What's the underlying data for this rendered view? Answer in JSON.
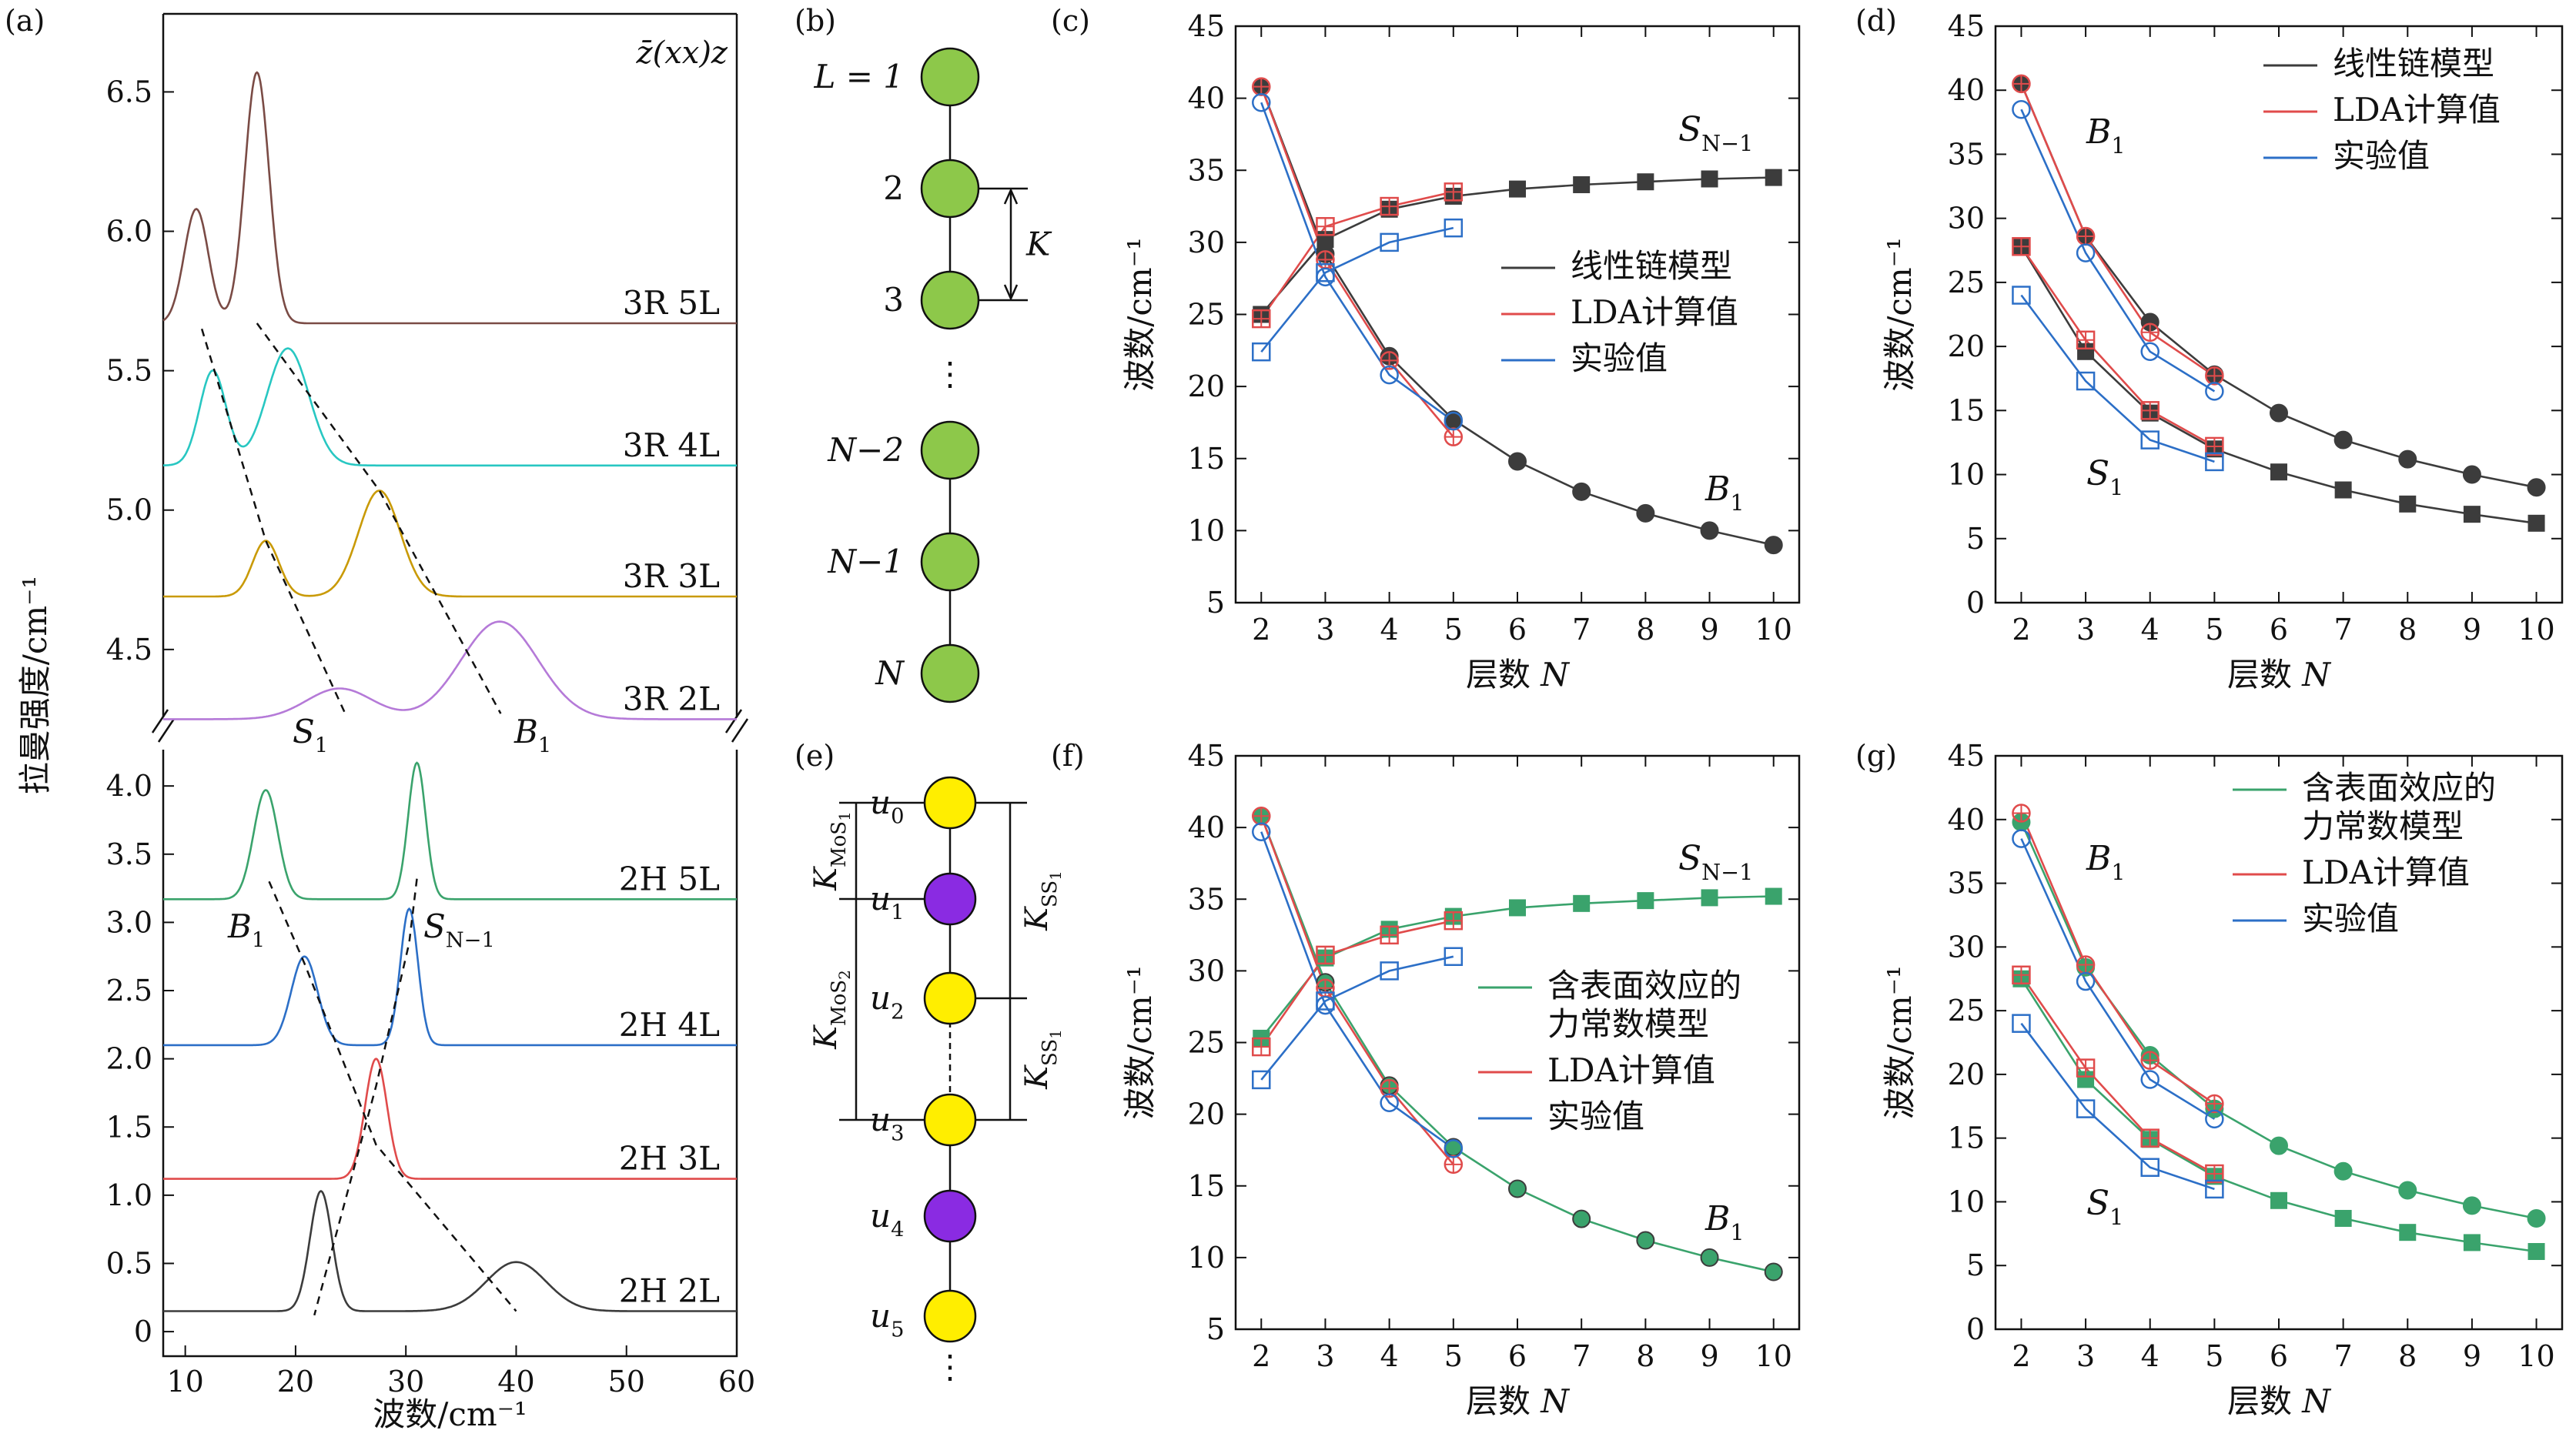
{
  "panel_labels": [
    "(a)",
    "(b)",
    "(c)",
    "(d)",
    "(e)",
    "(f)",
    "(g)"
  ],
  "chart_data": [
    {
      "id": "a",
      "type": "line",
      "xlabel": "波数/cm⁻¹",
      "ylabel": "拉曼强度/cm⁻¹",
      "annotation": "z̄(xx)z",
      "xlim": [
        8,
        60
      ],
      "xticks": [
        10,
        20,
        30,
        40,
        50,
        60
      ],
      "upper": {
        "ylim": [
          4.24,
          6.78
        ],
        "yticks": [
          4.5,
          5.0,
          5.5,
          6.0,
          6.5
        ]
      },
      "lower": {
        "ylim": [
          -0.18,
          4.3
        ],
        "yticks": [
          0,
          0.5,
          1.0,
          1.5,
          2.0,
          2.5,
          3.0,
          3.5,
          4.0
        ]
      },
      "series": [
        {
          "name": "3R 5L",
          "axis": "upper",
          "color": "#7a4b45",
          "baseline": 5.67,
          "peaks": [
            [
              11,
              0.41,
              1.1
            ],
            [
              16.5,
              0.9,
              1.1
            ]
          ]
        },
        {
          "name": "3R 4L",
          "axis": "upper",
          "color": "#28c7c2",
          "baseline": 5.16,
          "peaks": [
            [
              12.5,
              0.34,
              1.2
            ],
            [
              19.3,
              0.42,
              1.9
            ]
          ]
        },
        {
          "name": "3R 3L",
          "axis": "upper",
          "color": "#c99a06",
          "baseline": 4.69,
          "peaks": [
            [
              17.3,
              0.2,
              1.2
            ],
            [
              27.6,
              0.38,
              1.9
            ]
          ]
        },
        {
          "name": "3R 2L",
          "axis": "upper",
          "color": "#b57ad8",
          "baseline": 4.25,
          "peaks": [
            [
              24,
              0.11,
              3.0
            ],
            [
              38.5,
              0.35,
              3.5
            ]
          ]
        },
        {
          "name": "2H 5L",
          "axis": "lower",
          "color": "#3aa36c",
          "baseline": 3.17,
          "peaks": [
            [
              17.3,
              0.8,
              1.1
            ],
            [
              31,
              1.0,
              0.8
            ]
          ]
        },
        {
          "name": "2H 4L",
          "axis": "lower",
          "color": "#2c6fc7",
          "baseline": 2.1,
          "peaks": [
            [
              20.8,
              0.65,
              1.2
            ],
            [
              30.3,
              1.0,
              0.8
            ]
          ]
        },
        {
          "name": "2H 3L",
          "axis": "lower",
          "color": "#e04b4b",
          "baseline": 1.12,
          "peaks": [
            [
              27.3,
              0.88,
              1.0
            ]
          ]
        },
        {
          "name": "2H 2L",
          "axis": "lower",
          "color": "#3c3c3c",
          "baseline": 0.15,
          "peaks": [
            [
              22.3,
              0.88,
              1.0
            ],
            [
              40,
              0.36,
              2.7
            ]
          ]
        }
      ],
      "annotations": [
        {
          "text": "S",
          "sub": "1"
        },
        {
          "text": "B",
          "sub": "1"
        },
        {
          "text": "B",
          "sub": "1"
        },
        {
          "text": "S",
          "sub": "N−1"
        }
      ],
      "guides": {
        "upper_S1": [
          [
            11.5,
            5.65
          ],
          [
            17.3,
            4.89
          ],
          [
            24.5,
            4.27
          ]
        ],
        "upper_B1": [
          [
            16.5,
            5.67
          ],
          [
            27.6,
            5.07
          ],
          [
            38.6,
            4.27
          ]
        ],
        "lower_B1": [
          [
            17.6,
            3.3
          ],
          [
            20.8,
            2.7
          ],
          [
            27.3,
            1.37
          ],
          [
            40,
            0.15
          ]
        ],
        "lower_SN1": [
          [
            31,
            3.32
          ],
          [
            30.3,
            2.85
          ],
          [
            27.3,
            1.8
          ],
          [
            21.7,
            0.12
          ]
        ]
      }
    },
    {
      "id": "c",
      "type": "line",
      "xlabel": "层数 N",
      "ylabel": "波数/cm⁻¹",
      "xlim": [
        1.6,
        10.4
      ],
      "ylim": [
        5,
        45
      ],
      "xticks": [
        2,
        3,
        4,
        5,
        6,
        7,
        8,
        9,
        10
      ],
      "yticks": [
        5,
        10,
        15,
        20,
        25,
        30,
        35,
        40,
        45
      ],
      "legend": [
        {
          "label": "线性链模型",
          "color": "#3c3c3c"
        },
        {
          "label": "LDA计算值",
          "color": "#e04b4b"
        },
        {
          "label": "实验值",
          "color": "#2c6fc7"
        }
      ],
      "series": [
        {
          "name": "线性链模型 B1",
          "color": "#3c3c3c",
          "marker": "circle-filled",
          "x": [
            2,
            3,
            4,
            5,
            6,
            7,
            8,
            9,
            10
          ],
          "y": [
            40.8,
            29.2,
            22.1,
            17.7,
            14.8,
            12.7,
            11.2,
            10.0,
            9.0
          ]
        },
        {
          "name": "线性链模型 SN-1",
          "color": "#3c3c3c",
          "marker": "square-filled",
          "x": [
            2,
            3,
            4,
            5,
            6,
            7,
            8,
            9,
            10
          ],
          "y": [
            25.0,
            30.2,
            32.3,
            33.2,
            33.7,
            34.0,
            34.2,
            34.4,
            34.5
          ]
        },
        {
          "name": "LDA计算值 B1",
          "color": "#e04b4b",
          "marker": "circle-plus",
          "x": [
            2,
            3,
            4,
            5
          ],
          "y": [
            40.8,
            28.8,
            21.8,
            16.5
          ]
        },
        {
          "name": "LDA计算值 SN-1",
          "color": "#e04b4b",
          "marker": "square-plus",
          "x": [
            2,
            3,
            4,
            5
          ],
          "y": [
            24.7,
            31.1,
            32.5,
            33.5
          ]
        },
        {
          "name": "实验值 B1",
          "color": "#2c6fc7",
          "marker": "circle-open",
          "x": [
            2,
            3,
            4,
            5
          ],
          "y": [
            39.7,
            27.6,
            20.8,
            17.6
          ]
        },
        {
          "name": "实验值 SN-1",
          "color": "#2c6fc7",
          "marker": "square-open",
          "x": [
            2,
            3,
            4,
            5
          ],
          "y": [
            22.4,
            27.9,
            30.0,
            31.0
          ]
        }
      ],
      "annotations": [
        {
          "text": "S",
          "sub": "N−1"
        },
        {
          "text": "B",
          "sub": "1"
        }
      ]
    },
    {
      "id": "d",
      "type": "line",
      "xlabel": "层数 N",
      "ylabel": "波数/cm⁻¹",
      "xlim": [
        1.6,
        10.4
      ],
      "ylim": [
        0,
        45
      ],
      "xticks": [
        2,
        3,
        4,
        5,
        6,
        7,
        8,
        9,
        10
      ],
      "yticks": [
        0,
        5,
        10,
        15,
        20,
        25,
        30,
        35,
        40,
        45
      ],
      "legend": [
        {
          "label": "线性链模型",
          "color": "#3c3c3c"
        },
        {
          "label": "LDA计算值",
          "color": "#e04b4b"
        },
        {
          "label": "实验值",
          "color": "#2c6fc7"
        }
      ],
      "series": [
        {
          "name": "线性链模型 B1",
          "color": "#3c3c3c",
          "marker": "circle-filled",
          "x": [
            2,
            3,
            4,
            5,
            6,
            7,
            8,
            9,
            10
          ],
          "y": [
            40.5,
            28.6,
            21.9,
            17.8,
            14.8,
            12.7,
            11.2,
            10.0,
            9.0
          ]
        },
        {
          "name": "线性链模型 S1",
          "color": "#3c3c3c",
          "marker": "square-filled",
          "x": [
            2,
            3,
            4,
            5,
            6,
            7,
            8,
            9,
            10
          ],
          "y": [
            27.8,
            19.6,
            14.8,
            12.0,
            10.2,
            8.8,
            7.7,
            6.9,
            6.2
          ]
        },
        {
          "name": "LDA计算值 B1",
          "color": "#e04b4b",
          "marker": "circle-plus",
          "x": [
            2,
            3,
            4,
            5
          ],
          "y": [
            40.5,
            28.6,
            21.1,
            17.7
          ]
        },
        {
          "name": "LDA计算值 S1",
          "color": "#e04b4b",
          "marker": "square-plus",
          "x": [
            2,
            3,
            4,
            5
          ],
          "y": [
            27.8,
            20.5,
            15.0,
            12.2
          ]
        },
        {
          "name": "实验值 B1",
          "color": "#2c6fc7",
          "marker": "circle-open",
          "x": [
            2,
            3,
            4,
            5
          ],
          "y": [
            38.5,
            27.3,
            19.6,
            16.5
          ]
        },
        {
          "name": "实验值 S1",
          "color": "#2c6fc7",
          "marker": "square-open",
          "x": [
            2,
            3,
            4,
            5
          ],
          "y": [
            24.0,
            17.3,
            12.7,
            11.0
          ]
        }
      ],
      "annotations": [
        {
          "text": "B",
          "sub": "1"
        },
        {
          "text": "S",
          "sub": "1"
        }
      ]
    },
    {
      "id": "f",
      "type": "line",
      "xlabel": "层数 N",
      "ylabel": "波数/cm⁻¹",
      "xlim": [
        1.6,
        10.4
      ],
      "ylim": [
        5,
        45
      ],
      "xticks": [
        2,
        3,
        4,
        5,
        6,
        7,
        8,
        9,
        10
      ],
      "yticks": [
        5,
        10,
        15,
        20,
        25,
        30,
        35,
        40,
        45
      ],
      "legend": [
        {
          "label": "含表面效应的",
          "label2": "力常数模型",
          "color": "#3aa36c"
        },
        {
          "label": "LDA计算值",
          "color": "#e04b4b"
        },
        {
          "label": "实验值",
          "color": "#2c6fc7"
        }
      ],
      "series": [
        {
          "name": "含表面效应的力常数模型 B1",
          "color": "#3aa36c",
          "marker": "circle-filled-green",
          "edge": "#3c3c3c",
          "x": [
            2,
            3,
            4,
            5,
            6,
            7,
            8,
            9,
            10
          ],
          "y": [
            40.8,
            29.2,
            22.0,
            17.7,
            14.8,
            12.7,
            11.2,
            10.0,
            9.0
          ]
        },
        {
          "name": "含表面效应的力常数模型 SN-1",
          "color": "#3aa36c",
          "marker": "square-filled",
          "x": [
            2,
            3,
            4,
            5,
            6,
            7,
            8,
            9,
            10
          ],
          "y": [
            25.3,
            30.9,
            32.9,
            33.8,
            34.4,
            34.7,
            34.9,
            35.1,
            35.2
          ]
        },
        {
          "name": "LDA计算值 B1",
          "color": "#e04b4b",
          "marker": "circle-plus",
          "x": [
            2,
            3,
            4,
            5
          ],
          "y": [
            40.8,
            28.8,
            21.8,
            16.5
          ]
        },
        {
          "name": "LDA计算值 SN-1",
          "color": "#e04b4b",
          "marker": "square-plus",
          "x": [
            2,
            3,
            4,
            5
          ],
          "y": [
            24.7,
            31.1,
            32.5,
            33.5
          ]
        },
        {
          "name": "实验值 B1",
          "color": "#2c6fc7",
          "marker": "circle-open",
          "x": [
            2,
            3,
            4,
            5
          ],
          "y": [
            39.7,
            27.6,
            20.8,
            17.6
          ]
        },
        {
          "name": "实验值 SN-1",
          "color": "#2c6fc7",
          "marker": "square-open",
          "x": [
            2,
            3,
            4,
            5
          ],
          "y": [
            22.4,
            27.9,
            30.0,
            31.0
          ]
        }
      ],
      "annotations": [
        {
          "text": "S",
          "sub": "N−1"
        },
        {
          "text": "B",
          "sub": "1"
        }
      ]
    },
    {
      "id": "g",
      "type": "line",
      "xlabel": "层数 N",
      "ylabel": "波数/cm⁻¹",
      "xlim": [
        1.6,
        10.4
      ],
      "ylim": [
        0,
        45
      ],
      "xticks": [
        2,
        3,
        4,
        5,
        6,
        7,
        8,
        9,
        10
      ],
      "yticks": [
        0,
        5,
        10,
        15,
        20,
        25,
        30,
        35,
        40,
        45
      ],
      "legend": [
        {
          "label": "含表面效应的",
          "label2": "力常数模型",
          "color": "#3aa36c"
        },
        {
          "label": "LDA计算值",
          "color": "#e04b4b"
        },
        {
          "label": "实验值",
          "color": "#2c6fc7"
        }
      ],
      "series": [
        {
          "name": "含表面效应的力常数模型 B1",
          "color": "#3aa36c",
          "marker": "circle-filled",
          "x": [
            2,
            3,
            4,
            5,
            6,
            7,
            8,
            9,
            10
          ],
          "y": [
            39.8,
            28.4,
            21.5,
            17.3,
            14.4,
            12.4,
            10.9,
            9.7,
            8.7
          ]
        },
        {
          "name": "含表面效应的力常数模型 S1",
          "color": "#3aa36c",
          "marker": "square-filled",
          "x": [
            2,
            3,
            4,
            5,
            6,
            7,
            8,
            9,
            10
          ],
          "y": [
            27.5,
            19.6,
            14.9,
            12.0,
            10.1,
            8.7,
            7.6,
            6.8,
            6.1
          ]
        },
        {
          "name": "LDA计算值 B1",
          "color": "#e04b4b",
          "marker": "circle-plus",
          "x": [
            2,
            3,
            4,
            5
          ],
          "y": [
            40.5,
            28.6,
            21.1,
            17.7
          ]
        },
        {
          "name": "LDA计算值 S1",
          "color": "#e04b4b",
          "marker": "square-plus",
          "x": [
            2,
            3,
            4,
            5
          ],
          "y": [
            27.8,
            20.5,
            15.0,
            12.2
          ]
        },
        {
          "name": "实验值 B1",
          "color": "#2c6fc7",
          "marker": "circle-open",
          "x": [
            2,
            3,
            4,
            5
          ],
          "y": [
            38.5,
            27.3,
            19.6,
            16.5
          ]
        },
        {
          "name": "实验值 S1",
          "color": "#2c6fc7",
          "marker": "square-open",
          "x": [
            2,
            3,
            4,
            5
          ],
          "y": [
            24.0,
            17.3,
            12.7,
            11.0
          ]
        }
      ],
      "annotations": [
        {
          "text": "B",
          "sub": "1"
        },
        {
          "text": "S",
          "sub": "1"
        }
      ]
    }
  ],
  "diagrams": {
    "b": {
      "node_color": "#8dc84a",
      "labels": [
        "L = 1",
        "2",
        "3",
        "N−2",
        "N−1",
        "N"
      ],
      "ellipsis": "⋮",
      "spring": "K"
    },
    "e": {
      "colors": [
        "#ffee00",
        "#8a2be2"
      ],
      "nodes": [
        {
          "label": "u",
          "sub": "0",
          "color": "#ffee00"
        },
        {
          "label": "u",
          "sub": "1",
          "color": "#8a2be2"
        },
        {
          "label": "u",
          "sub": "2",
          "color": "#ffee00"
        },
        {
          "label": "u",
          "sub": "3",
          "color": "#ffee00"
        },
        {
          "label": "u",
          "sub": "4",
          "color": "#8a2be2"
        },
        {
          "label": "u",
          "sub": "5",
          "color": "#ffee00"
        }
      ],
      "ellipsis": "⋮",
      "springs": [
        {
          "text": "K",
          "sub": "MoS",
          "sub2": "1"
        },
        {
          "text": "K",
          "sub": "MoS",
          "sub2": "2"
        },
        {
          "text": "K",
          "sub": "SS",
          "sub2": "1"
        },
        {
          "text": "K",
          "sub": "SS",
          "sub2": "1"
        }
      ]
    }
  }
}
